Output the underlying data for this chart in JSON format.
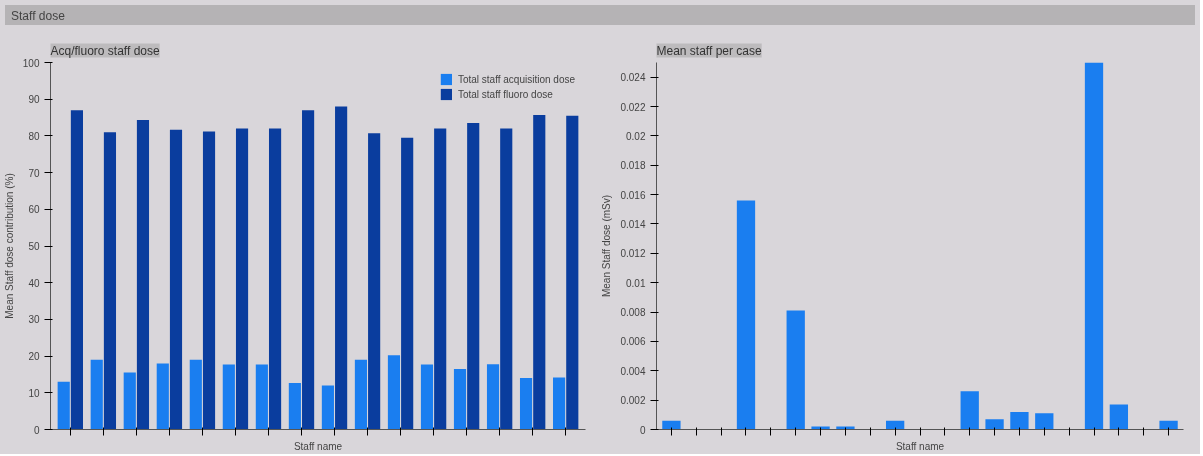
{
  "chart_data": [
    {
      "type": "bar",
      "title": "Acq/fluoro staff dose",
      "annotations": [
        "Staff dose"
      ],
      "xlabel": "Staff name",
      "ylabel": "Mean Staff dose contribution (%)",
      "categories": [
        null,
        null,
        null,
        null,
        null,
        null,
        null,
        null,
        null,
        null,
        null,
        null,
        null,
        null,
        null,
        null
      ],
      "series": [
        {
          "name": "Total staff acquisition dose",
          "color": "#1a7ef0",
          "values": [
            13,
            19,
            15.5,
            18,
            19,
            17.7,
            17.7,
            12.7,
            12,
            19,
            20.2,
            17.7,
            16.5,
            17.8,
            14,
            14.2
          ]
        },
        {
          "name": "Total staff fluoro dose",
          "color": "#0a3d9e",
          "values": [
            87,
            81,
            84.3,
            81.7,
            81.2,
            82,
            82,
            87,
            88,
            80.7,
            79.5,
            82,
            83.5,
            82,
            85.7,
            85.5
          ]
        }
      ],
      "ylim": [
        0,
        100
      ],
      "yticks": [
        0,
        10,
        20,
        30,
        40,
        50,
        60,
        70,
        80,
        90,
        100
      ],
      "grid": false,
      "legend": "top right"
    },
    {
      "type": "bar",
      "title": "Mean staff per case",
      "xlabel": "Staff name",
      "ylabel": "Mean Staff dose (mSv)",
      "categories": [
        null,
        null,
        null,
        null,
        null,
        null,
        null,
        null,
        null,
        null,
        null,
        null,
        null,
        null,
        null,
        null,
        null,
        null,
        null,
        null,
        null
      ],
      "series": [
        {
          "color": "#1a7ef0",
          "values": [
            0.0006,
            null,
            null,
            0.0156,
            null,
            0.0081,
            0.0002,
            0.0002,
            null,
            0.0006,
            null,
            null,
            0.0026,
            0.0007,
            0.0012,
            0.0011,
            null,
            0.025,
            0.0017,
            null,
            0.0006
          ]
        }
      ],
      "ylim": [
        0,
        0.025
      ],
      "yticks": [
        0,
        0.002,
        0.004,
        0.006,
        0.008,
        0.01,
        0.012,
        0.014,
        0.016,
        0.018,
        0.02,
        0.022,
        0.024
      ],
      "grid": false,
      "legend": false
    }
  ]
}
